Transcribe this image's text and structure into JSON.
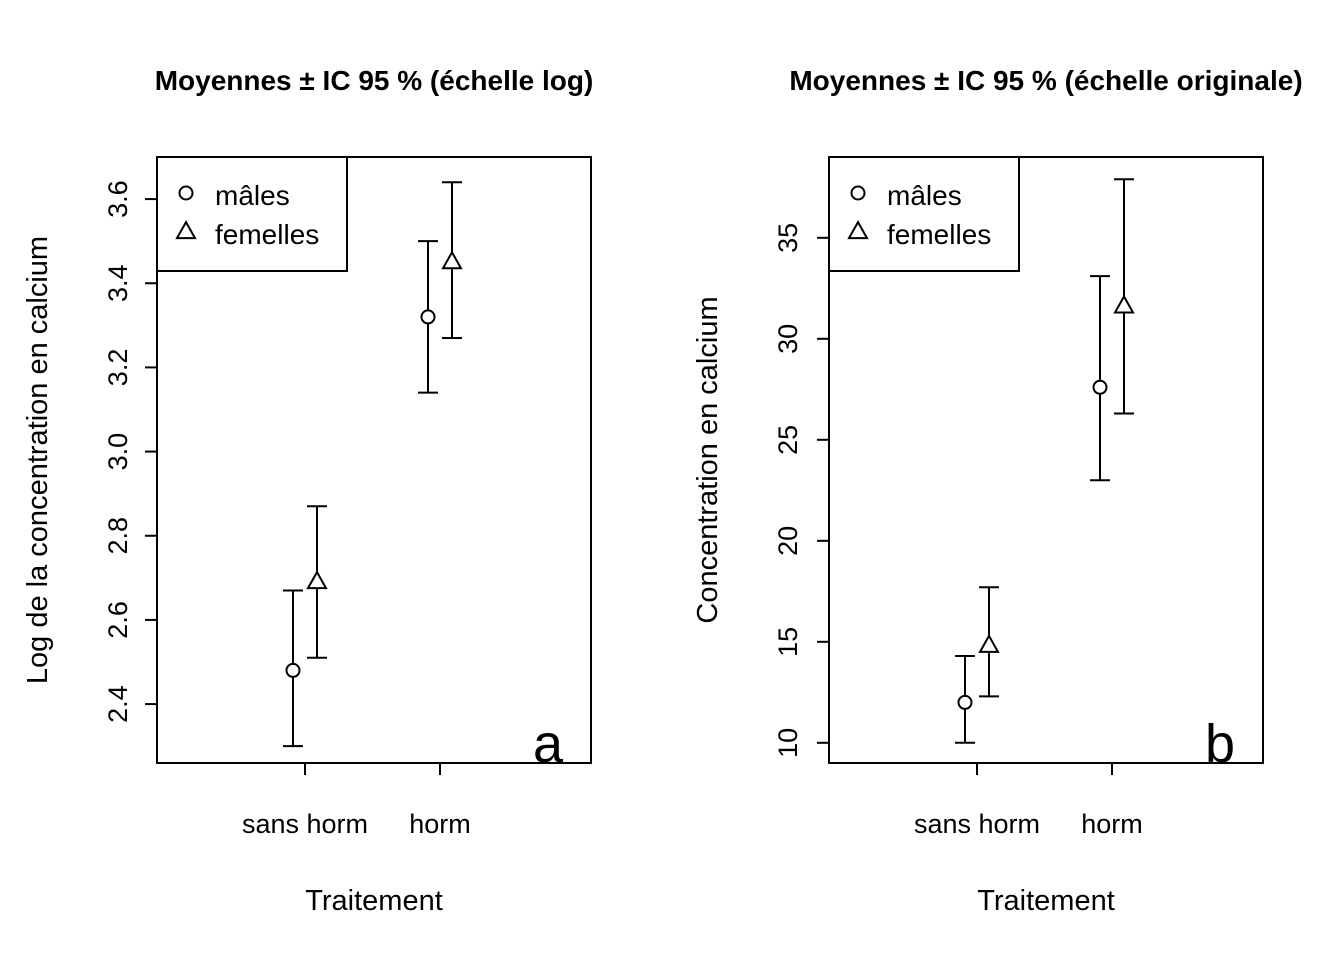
{
  "chart_data": [
    {
      "type": "scatter",
      "title": "Moyennes ± IC 95 % (échelle log)",
      "xlabel": "Traitement",
      "ylabel": "Log de la concentration en calcium",
      "categories": [
        "sans horm",
        "horm"
      ],
      "yticks": [
        "2.4",
        "2.6",
        "2.8",
        "3.0",
        "3.2",
        "3.4",
        "3.6"
      ],
      "ylim": [
        2.26,
        3.7
      ],
      "legend": {
        "position": "top-left",
        "entries": [
          "mâles",
          "femelles"
        ]
      },
      "series": [
        {
          "name": "mâles",
          "marker": "circle",
          "values": [
            2.48,
            3.32
          ],
          "ci_low": [
            2.3,
            3.14
          ],
          "ci_high": [
            2.67,
            3.5
          ]
        },
        {
          "name": "femelles",
          "marker": "triangle",
          "values": [
            2.69,
            3.45
          ],
          "ci_low": [
            2.51,
            3.27
          ],
          "ci_high": [
            2.87,
            3.64
          ]
        }
      ],
      "panel_label": "a"
    },
    {
      "type": "scatter",
      "title": "Moyennes ± IC 95 % (échelle originale)",
      "xlabel": "Traitement",
      "ylabel": "Concentration en calcium",
      "categories": [
        "sans horm",
        "horm"
      ],
      "yticks": [
        "10",
        "15",
        "20",
        "25",
        "30",
        "35"
      ],
      "ylim": [
        9.0,
        39.0
      ],
      "legend": {
        "position": "top-left",
        "entries": [
          "mâles",
          "femelles"
        ]
      },
      "series": [
        {
          "name": "mâles",
          "marker": "circle",
          "values": [
            12.0,
            27.6
          ],
          "ci_low": [
            10.0,
            23.0
          ],
          "ci_high": [
            14.3,
            33.1
          ]
        },
        {
          "name": "femelles",
          "marker": "triangle",
          "values": [
            14.8,
            31.6
          ],
          "ci_low": [
            12.3,
            26.3
          ],
          "ci_high": [
            17.7,
            37.9
          ]
        }
      ],
      "panel_label": "b"
    }
  ]
}
